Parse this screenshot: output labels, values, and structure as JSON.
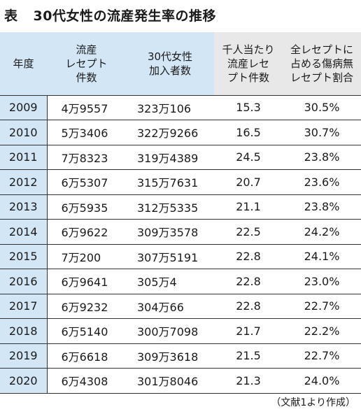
{
  "title": {
    "prefix": "表",
    "text": "30代女性の流産発生率の推移"
  },
  "headers": {
    "year": [
      "年度"
    ],
    "claims": [
      "流産",
      "レセプト",
      "件数"
    ],
    "members": [
      "30代女性",
      "加入者数"
    ],
    "per_thousand": [
      "千人当たり",
      "流産レセ",
      "プト件数"
    ],
    "ratio": [
      "全レセプトに",
      "占める傷病無",
      "レセプト割合"
    ]
  },
  "rows": [
    {
      "year": "2009",
      "claims": "4万9557",
      "members": "323万106",
      "per": "15.3",
      "ratio": "30.5%"
    },
    {
      "year": "2010",
      "claims": "5万3406",
      "members": "322万9266",
      "per": "16.5",
      "ratio": "30.7%"
    },
    {
      "year": "2011",
      "claims": "7万8323",
      "members": "319万4389",
      "per": "24.5",
      "ratio": "23.8%"
    },
    {
      "year": "2012",
      "claims": "6万5307",
      "members": "315万7631",
      "per": "20.7",
      "ratio": "23.6%"
    },
    {
      "year": "2013",
      "claims": "6万5935",
      "members": "312万5335",
      "per": "21.1",
      "ratio": "23.8%"
    },
    {
      "year": "2014",
      "claims": "6万9622",
      "members": "309万3578",
      "per": "22.5",
      "ratio": "24.2%"
    },
    {
      "year": "2015",
      "claims": "7万200",
      "members": "307万5191",
      "per": "22.8",
      "ratio": "24.1%"
    },
    {
      "year": "2016",
      "claims": "6万9641",
      "members": "305万4",
      "per": "22.8",
      "ratio": "23.0%"
    },
    {
      "year": "2017",
      "claims": "6万9232",
      "members": "304万66",
      "per": "22.8",
      "ratio": "22.7%"
    },
    {
      "year": "2018",
      "claims": "6万5140",
      "members": "300万7098",
      "per": "21.7",
      "ratio": "22.2%"
    },
    {
      "year": "2019",
      "claims": "6万6618",
      "members": "309万3618",
      "per": "21.5",
      "ratio": "22.7%"
    },
    {
      "year": "2020",
      "claims": "6万4308",
      "members": "301万8046",
      "per": "21.3",
      "ratio": "24.0%"
    }
  ],
  "source": "（文献1より作成）",
  "colors": {
    "header_blue": "#d3e6f5",
    "header_gray": "#e8e8e8",
    "border": "#333333"
  }
}
